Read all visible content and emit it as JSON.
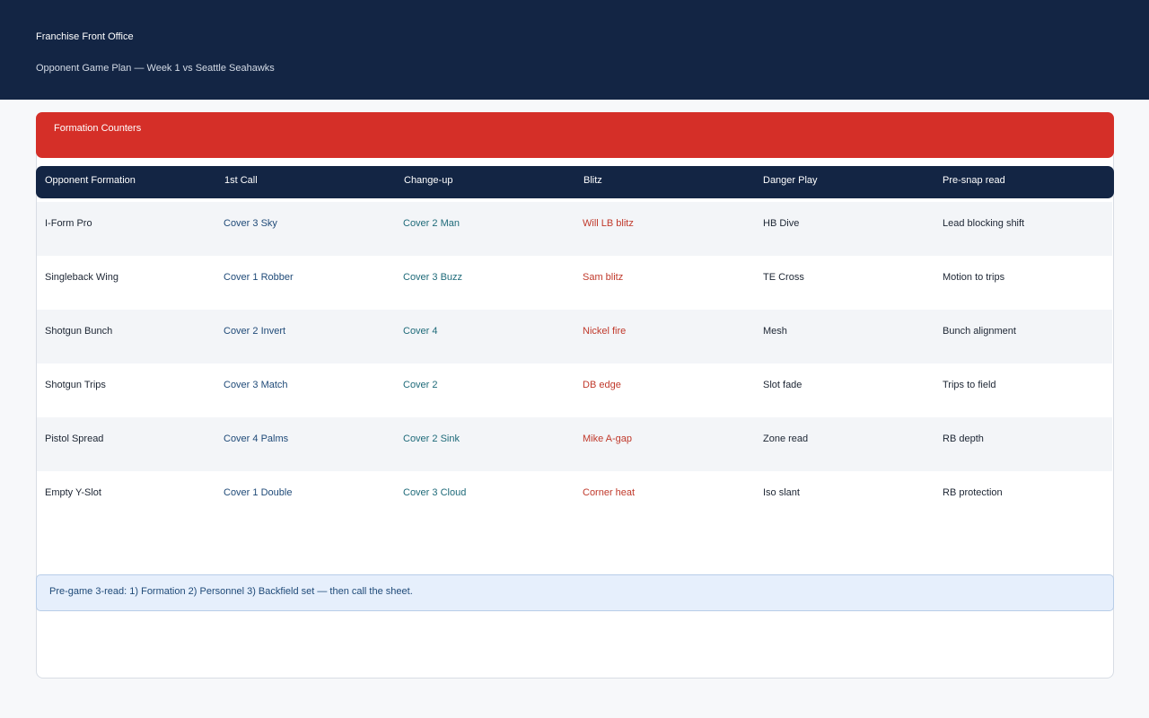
{
  "header": {
    "app_title": "Franchise Front Office",
    "subtitle": "Opponent Game Plan — Week 1 vs Seattle Seahawks"
  },
  "section": {
    "title": "Formation Counters"
  },
  "table": {
    "columns": [
      "Opponent Formation",
      "1st Call",
      "Change-up",
      "Blitz",
      "Danger Play",
      "Pre-snap read"
    ],
    "rows": [
      [
        "I-Form Pro",
        "Cover 3 Sky",
        "Cover 2 Man",
        "Will LB blitz",
        "HB Dive",
        "Lead blocking shift"
      ],
      [
        "Singleback Wing",
        "Cover 1 Robber",
        "Cover 3 Buzz",
        "Sam blitz",
        "TE Cross",
        "Motion to trips"
      ],
      [
        "Shotgun Bunch",
        "Cover 2 Invert",
        "Cover 4",
        "Nickel fire",
        "Mesh",
        "Bunch alignment"
      ],
      [
        "Shotgun Trips",
        "Cover 3 Match",
        "Cover 2",
        "DB edge",
        "Slot fade",
        "Trips to field"
      ],
      [
        "Pistol Spread",
        "Cover 4 Palms",
        "Cover 2 Sink",
        "Mike A-gap",
        "Zone read",
        "RB depth"
      ],
      [
        "Empty Y-Slot",
        "Cover 1 Double",
        "Cover 3 Cloud",
        "Corner heat",
        "Iso slant",
        "RB protection"
      ]
    ]
  },
  "note": {
    "text": "Pre-game 3-read: 1) Formation  2) Personnel  3) Backfield set — then call the sheet."
  },
  "colors": {
    "header_bg": "#132544",
    "banner_red": "#d52f28",
    "blitz_red": "#c0392b",
    "call_blue": "#1f4a78",
    "changeup_teal": "#1e6a79",
    "note_bg": "#e6effc"
  }
}
